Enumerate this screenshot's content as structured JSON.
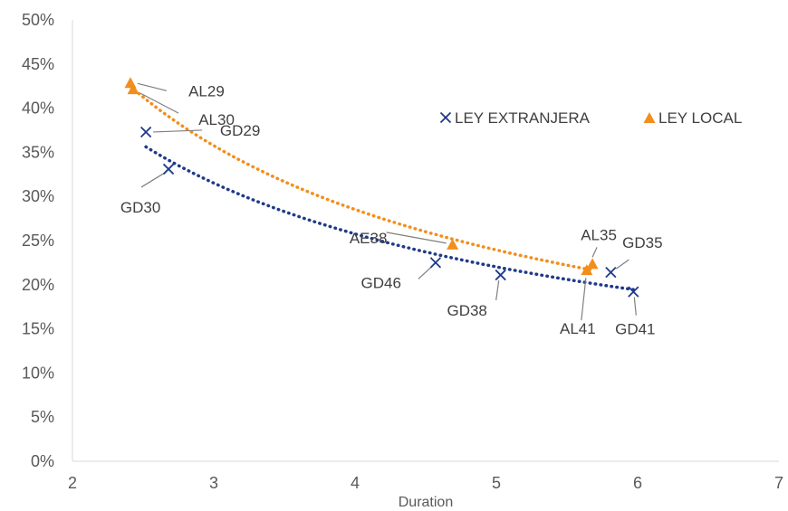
{
  "chart_data": {
    "type": "scatter",
    "title": "",
    "xlabel": "Duration",
    "ylabel": "",
    "xlim": [
      2,
      7
    ],
    "ylim": [
      0,
      0.5
    ],
    "x_ticks": [
      "2",
      "3",
      "4",
      "5",
      "6",
      "7"
    ],
    "y_ticks": [
      "0%",
      "5%",
      "10%",
      "15%",
      "20%",
      "25%",
      "30%",
      "35%",
      "40%",
      "45%",
      "50%"
    ],
    "grid": false,
    "legend_position": "right",
    "series": [
      {
        "name": "LEY EXTRANJERA",
        "marker": "x",
        "color": "#1f3a8a",
        "trendline": "dotted",
        "points": [
          {
            "label": "GD29",
            "x": 2.52,
            "y": 0.373
          },
          {
            "label": "GD30",
            "x": 2.68,
            "y": 0.331
          },
          {
            "label": "GD46",
            "x": 4.57,
            "y": 0.225
          },
          {
            "label": "GD38",
            "x": 5.03,
            "y": 0.211
          },
          {
            "label": "GD35",
            "x": 5.81,
            "y": 0.214
          },
          {
            "label": "GD41",
            "x": 5.97,
            "y": 0.192
          }
        ]
      },
      {
        "name": "LEY LOCAL",
        "marker": "triangle",
        "color": "#f28e1c",
        "trendline": "dotted",
        "points": [
          {
            "label": "AL29",
            "x": 2.41,
            "y": 0.428
          },
          {
            "label": "AL30",
            "x": 2.43,
            "y": 0.421
          },
          {
            "label": "AE38",
            "x": 4.69,
            "y": 0.245
          },
          {
            "label": "AL41",
            "x": 5.64,
            "y": 0.216
          },
          {
            "label": "AL35",
            "x": 5.68,
            "y": 0.223
          }
        ]
      }
    ]
  }
}
